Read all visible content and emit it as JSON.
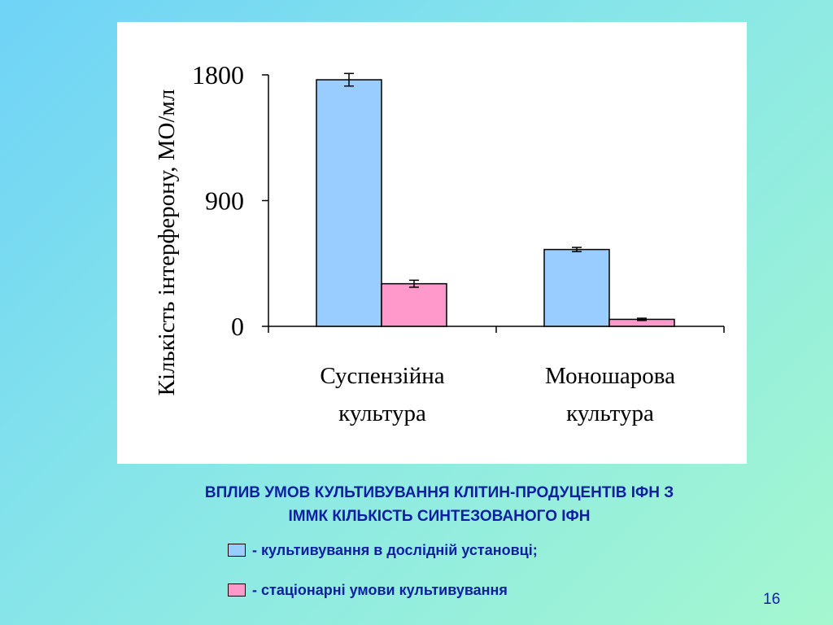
{
  "chart_data": {
    "type": "bar",
    "categories": [
      [
        "Суспензійна",
        "культура"
      ],
      [
        "Моношарова",
        "культура"
      ]
    ],
    "series": [
      {
        "name": "- культивування в дослідній установці;",
        "values": [
          1765,
          550
        ],
        "errors": [
          45,
          15
        ],
        "color": "#99ccff"
      },
      {
        "name": "- стаціонарні умови культивування",
        "values": [
          305,
          50
        ],
        "errors": [
          25,
          8
        ],
        "color": "#ff99cc"
      }
    ],
    "ylabel": "Кількість інтерферону, МО/мл",
    "yticks": [
      "0",
      "900",
      "1800"
    ],
    "ylim": [
      0,
      1800
    ],
    "grid": false,
    "legend": "below chart"
  },
  "caption": {
    "line1": "ВПЛИВ УМОВ КУЛЬТИВУВАННЯ КЛІТИН-ПРОДУЦЕНТІВ ІФН З",
    "line2": "ІММК КІЛЬКІСТЬ СИНТЕЗОВАНОГО ІФН"
  },
  "legend": [
    {
      "label": "- культивування в дослідній установці;",
      "color": "#99ccff"
    },
    {
      "label": "- стаціонарні умови культивування",
      "color": "#ff99cc"
    }
  ],
  "slide_number": "16"
}
